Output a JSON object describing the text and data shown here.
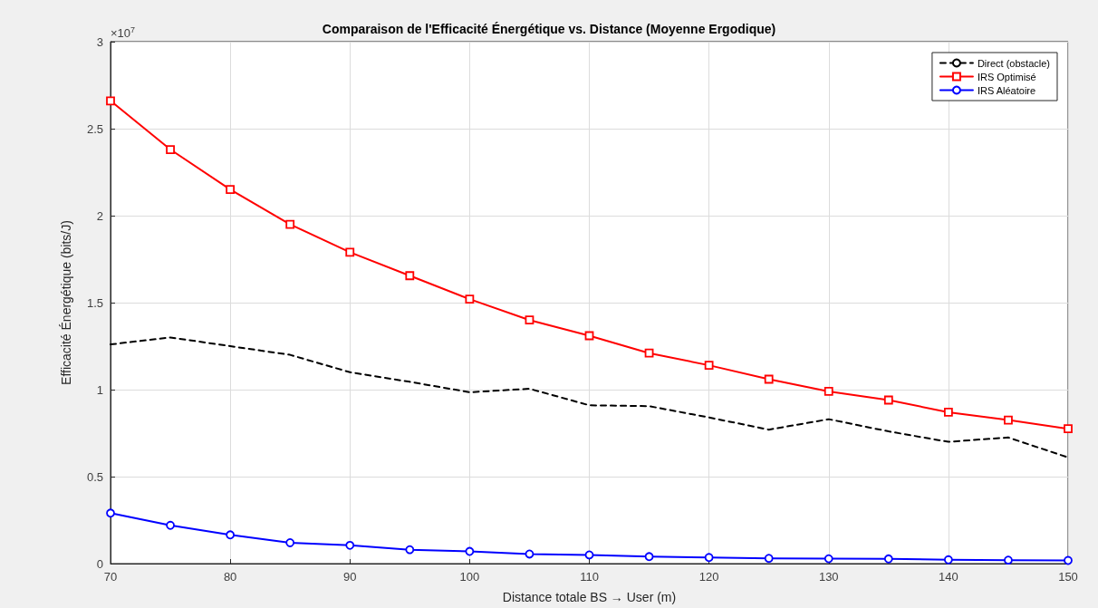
{
  "chart_data": {
    "type": "line",
    "title": "Comparaison de l'Efficacité Énergétique vs. Distance (Moyenne Ergodique)",
    "xlabel": "Distance totale BS → User (m)",
    "ylabel": "Efficacité Énergétique (bits/J)",
    "annotations": [
      "×10$^{7}$"
    ],
    "x": [
      70,
      75,
      80,
      85,
      90,
      95,
      100,
      105,
      110,
      115,
      120,
      125,
      130,
      135,
      140,
      145,
      150
    ],
    "series": [
      {
        "name": "Direct (obstacle)",
        "color": "#000000",
        "marker": "none",
        "line_style": "dashed",
        "values": [
          1.26,
          1.3,
          1.25,
          1.2,
          1.1,
          1.045,
          0.985,
          1.005,
          0.91,
          0.905,
          0.84,
          0.77,
          0.83,
          0.76,
          0.7,
          0.725,
          0.61
        ]
      },
      {
        "name": "IRS Optimisé",
        "color": "#ff0000",
        "marker": "square",
        "line_style": "solid",
        "values": [
          2.66,
          2.38,
          2.15,
          1.95,
          1.79,
          1.655,
          1.52,
          1.4,
          1.31,
          1.21,
          1.14,
          1.06,
          0.99,
          0.94,
          0.87,
          0.825,
          0.775
        ]
      },
      {
        "name": "IRS Aléatoire",
        "color": "#0000ff",
        "marker": "circle",
        "line_style": "solid",
        "values": [
          0.29,
          0.22,
          0.165,
          0.12,
          0.105,
          0.08,
          0.07,
          0.055,
          0.05,
          0.04,
          0.035,
          0.03,
          0.028,
          0.027,
          0.022,
          0.02,
          0.018
        ]
      }
    ],
    "xlim": [
      70,
      150
    ],
    "xticks": [
      70,
      80,
      90,
      100,
      110,
      120,
      130,
      140,
      150
    ],
    "ylim": [
      0,
      3
    ],
    "yticks": [
      0,
      0.5,
      1,
      1.5,
      2,
      2.5,
      3
    ],
    "grid": true,
    "legend": "top right"
  }
}
